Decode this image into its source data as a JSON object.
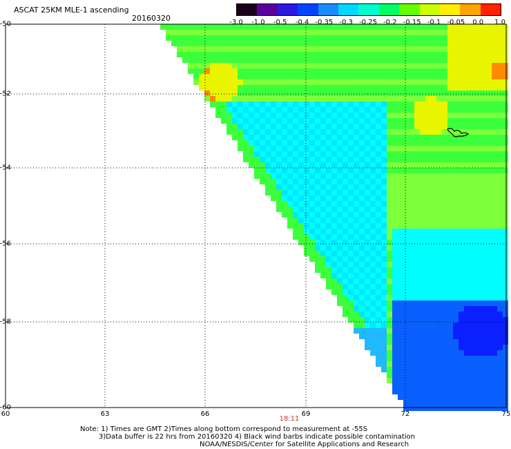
{
  "header": {
    "title": "ASCAT 25KM MLE-1 ascending",
    "date": "20160320"
  },
  "colorbar": {
    "ticks": [
      "-3.0",
      "-1.0",
      "-0.5",
      "-0.4",
      "-0.35",
      "-0.3",
      "-0.25",
      "-0.2",
      "-0.15",
      "-0.1",
      "-0.05",
      "0.0",
      "1.0"
    ],
    "colors": [
      "#1a001a",
      "#5a00a0",
      "#2a1adf",
      "#0044ff",
      "#1a8cff",
      "#00d9ff",
      "#00ffd0",
      "#00ff66",
      "#66ff00",
      "#ccff00",
      "#ffee00",
      "#ffa500",
      "#ff2200"
    ]
  },
  "map": {
    "lon_range": [
      60,
      75
    ],
    "lat_range": [
      -60,
      -50
    ],
    "x_ticks": [
      "60",
      "63",
      "66",
      "69",
      "72",
      "75"
    ],
    "y_ticks": [
      "-50",
      "-52",
      "-54",
      "-56",
      "-58",
      "-60"
    ],
    "gridlines": "dotted",
    "time_label": "18:11",
    "colors": {
      "yellow": "#e9f500",
      "orange": "#ff8a00",
      "lightgreen": "#7dff3a",
      "green": "#3cff3c",
      "cyan": "#00ffff",
      "aqua": "#00e6ff",
      "lightblue": "#22b8ff",
      "blue": "#0a60ff",
      "darkblue": "#0a20ff",
      "line": "#000000"
    }
  },
  "notes": {
    "line1": "Note: 1) Times are GMT 2)Times along bottom correspond to measurement at -55S",
    "line2": "3)Data buffer is 22 hrs from 20160320 4) Black wind barbs indicate possible contamination",
    "line3": "NOAA/NESDIS/Center for Satellite Applications and Research"
  }
}
